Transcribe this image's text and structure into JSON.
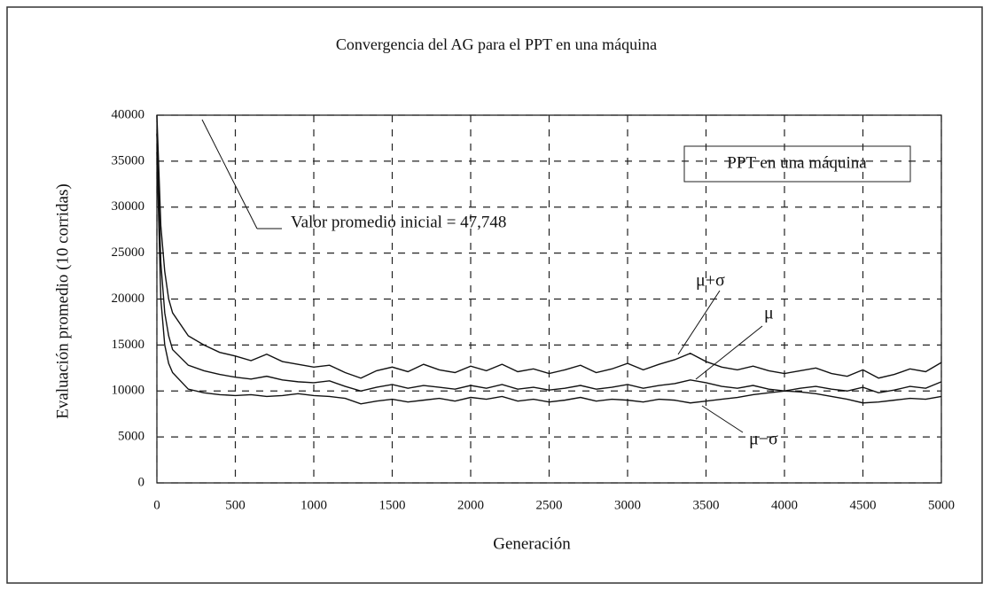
{
  "chart_data": {
    "type": "line",
    "title": "Convergencia del AG para el PPT en una máquina",
    "xlabel": "Generación",
    "ylabel": "Evaluación promedio (10 corridas)",
    "legend_title": "PPT en una máquina",
    "annotation": "Valor promedio inicial = 47,748",
    "x": [
      0,
      25,
      50,
      75,
      100,
      200,
      300,
      400,
      500,
      600,
      700,
      800,
      900,
      1000,
      1100,
      1200,
      1300,
      1400,
      1500,
      1600,
      1700,
      1800,
      1900,
      2000,
      2100,
      2200,
      2300,
      2400,
      2500,
      2600,
      2700,
      2800,
      2900,
      3000,
      3100,
      3200,
      3300,
      3400,
      3500,
      3600,
      3700,
      3800,
      3900,
      4000,
      4100,
      4200,
      4300,
      4400,
      4500,
      4600,
      4700,
      4800,
      4900,
      5000
    ],
    "series": [
      {
        "name": "μ+σ",
        "color": "#111111",
        "values": [
          40000,
          28000,
          23000,
          20000,
          18500,
          16000,
          15000,
          14200,
          13800,
          13300,
          14000,
          13200,
          12900,
          12600,
          12800,
          12000,
          11400,
          12200,
          12600,
          12100,
          12900,
          12300,
          12000,
          12700,
          12200,
          12900,
          12100,
          12400,
          11900,
          12300,
          12800,
          12000,
          12400,
          13000,
          12300,
          12900,
          13400,
          14100,
          13200,
          12600,
          12300,
          12700,
          12200,
          11900,
          12200,
          12500,
          11900,
          11600,
          12300,
          11400,
          11800,
          12400,
          12100,
          13100
        ]
      },
      {
        "name": "μ",
        "color": "#111111",
        "values": [
          38000,
          24000,
          18500,
          16000,
          14500,
          12800,
          12200,
          11800,
          11500,
          11300,
          11600,
          11200,
          11000,
          10900,
          11100,
          10500,
          10000,
          10400,
          10700,
          10300,
          10600,
          10400,
          10200,
          10600,
          10300,
          10700,
          10200,
          10400,
          10100,
          10300,
          10600,
          10200,
          10400,
          10700,
          10300,
          10600,
          10800,
          11200,
          10900,
          10500,
          10300,
          10600,
          10200,
          10000,
          10300,
          10500,
          10200,
          10000,
          10400,
          9800,
          10100,
          10500,
          10300,
          11000
        ]
      },
      {
        "name": "μ−σ",
        "color": "#111111",
        "values": [
          36000,
          20000,
          15000,
          13000,
          12000,
          10200,
          9800,
          9600,
          9500,
          9600,
          9400,
          9500,
          9700,
          9500,
          9400,
          9200,
          8600,
          8900,
          9100,
          8800,
          9000,
          9200,
          8900,
          9300,
          9100,
          9400,
          8900,
          9100,
          8800,
          9000,
          9300,
          8900,
          9100,
          9000,
          8800,
          9100,
          9000,
          8700,
          8900,
          9100,
          9300,
          9600,
          9800,
          10000,
          9900,
          9700,
          9400,
          9100,
          8700,
          8800,
          9000,
          9200,
          9100,
          9400
        ]
      }
    ],
    "xlim": [
      0,
      5000
    ],
    "xticks": [
      0,
      500,
      1000,
      1500,
      2000,
      2500,
      3000,
      3500,
      4000,
      4500,
      5000
    ],
    "ylim": [
      0,
      40000
    ],
    "yticks": [
      0,
      5000,
      10000,
      15000,
      20000,
      25000,
      30000,
      35000,
      40000
    ],
    "grid": true
  }
}
